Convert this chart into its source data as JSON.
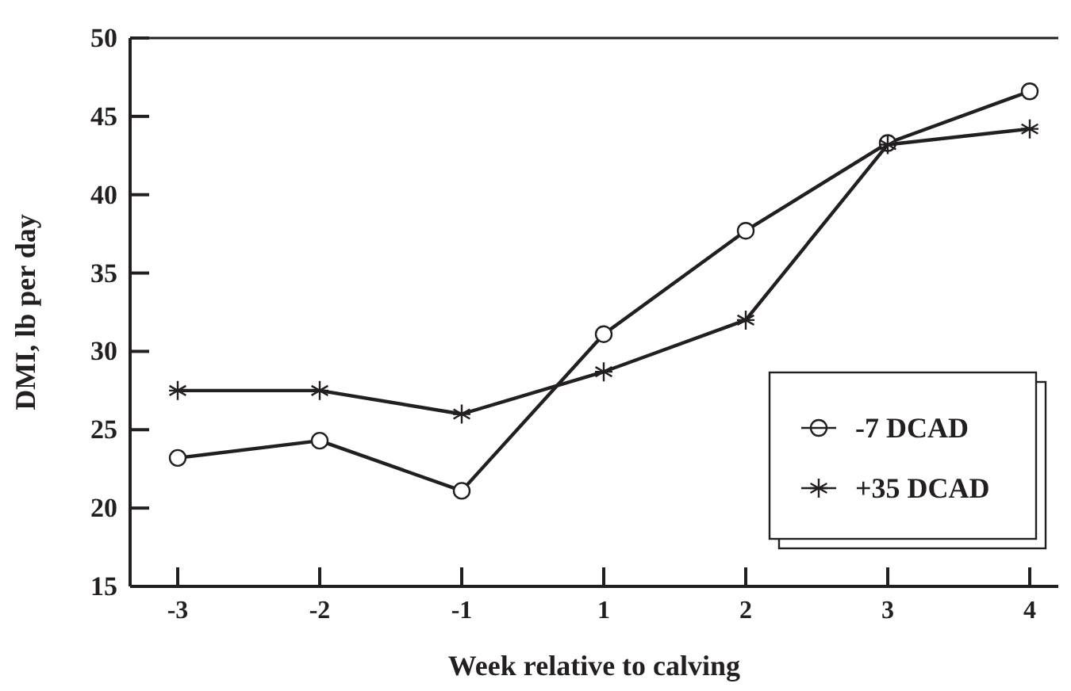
{
  "chart_data": {
    "type": "line",
    "xlabel": "Week relative to calving",
    "ylabel": "DMI, lb per day",
    "categories": [
      "-3",
      "-2",
      "-1",
      "1",
      "2",
      "3",
      "4"
    ],
    "series": [
      {
        "name": "-7 DCAD",
        "color": "#231f20",
        "marker": "circle",
        "values": [
          23.2,
          24.3,
          21.1,
          31.1,
          37.7,
          43.3,
          46.6
        ]
      },
      {
        "name": "+35 DCAD",
        "color": "#231f20",
        "marker": "cross",
        "values": [
          27.5,
          27.5,
          26.0,
          28.7,
          32.0,
          43.2,
          44.2
        ]
      }
    ],
    "ylim": [
      15,
      50
    ],
    "yticks": [
      15,
      20,
      25,
      30,
      35,
      40,
      45,
      50
    ],
    "grid": false,
    "legend": "bottom right",
    "line_style": "solid"
  }
}
